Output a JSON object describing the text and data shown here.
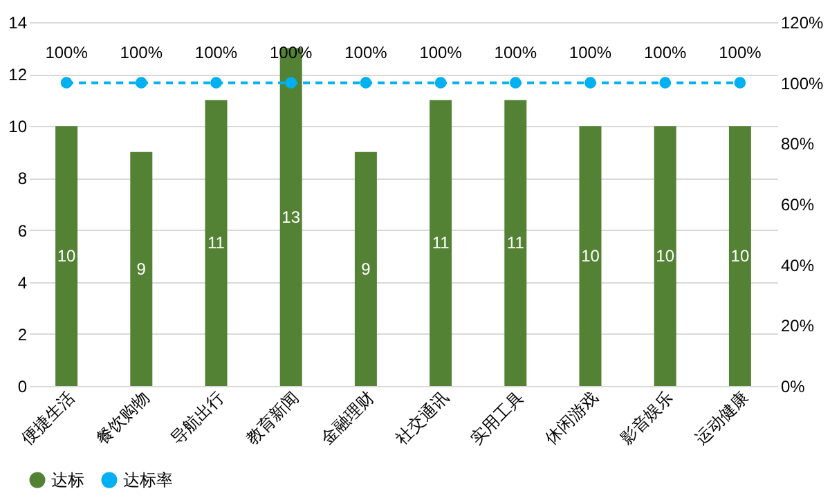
{
  "chart_data": {
    "type": "bar",
    "categories": [
      "便捷生活",
      "餐饮购物",
      "导航出行",
      "教育新闻",
      "金融理财",
      "社交通讯",
      "实用工具",
      "休闲游戏",
      "影音娱乐",
      "运动健康"
    ],
    "series": [
      {
        "name": "达标",
        "color": "#548235",
        "values": [
          10,
          9,
          11,
          13,
          9,
          11,
          11,
          10,
          10,
          10
        ],
        "value_labels": [
          "10",
          "9",
          "11",
          "13",
          "9",
          "11",
          "11",
          "10",
          "10",
          "10"
        ]
      },
      {
        "name": "达标率",
        "type": "line",
        "axis": "y2",
        "color": "#00b0f0",
        "marker": "circle",
        "line_style": "dashed",
        "values": [
          100,
          100,
          100,
          100,
          100,
          100,
          100,
          100,
          100,
          100
        ],
        "value_labels": [
          "100%",
          "100%",
          "100%",
          "100%",
          "100%",
          "100%",
          "100%",
          "100%",
          "100%",
          "100%"
        ]
      }
    ],
    "ylim": [
      0,
      14
    ],
    "yticks": [
      0,
      2,
      4,
      6,
      8,
      10,
      12,
      14
    ],
    "y2lim": [
      0,
      120
    ],
    "y2ticks": [
      {
        "value": 0,
        "label": "0%"
      },
      {
        "value": 20,
        "label": "20%"
      },
      {
        "value": 40,
        "label": "40%"
      },
      {
        "value": 60,
        "label": "60%"
      },
      {
        "value": 80,
        "label": "80%"
      },
      {
        "value": 100,
        "label": "100%"
      },
      {
        "value": 120,
        "label": "120%"
      }
    ],
    "grid": "y",
    "legend": "bottom"
  }
}
